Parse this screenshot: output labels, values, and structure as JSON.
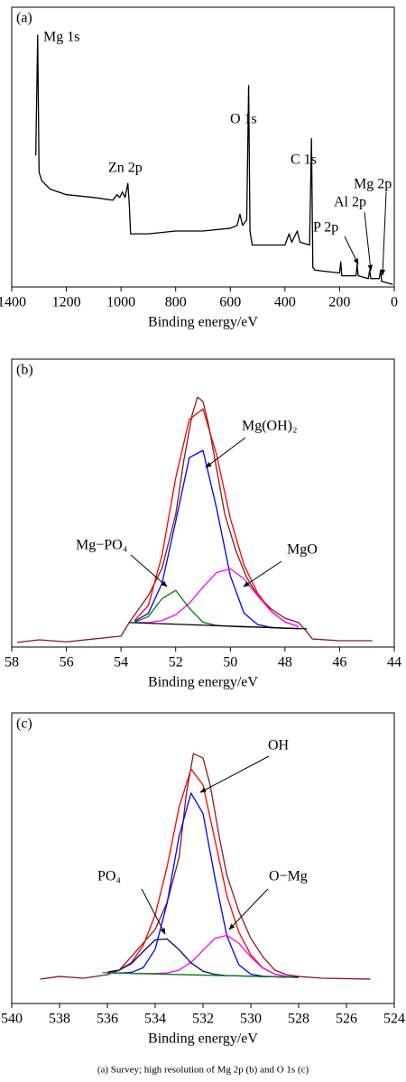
{
  "chart_data": [
    {
      "type": "line",
      "label": "(a)",
      "color": "#000000",
      "x": [
        1312,
        1305,
        1300,
        1290,
        1260,
        1230,
        1200,
        1100,
        1030,
        1015,
        1005,
        995,
        985,
        975,
        970,
        965,
        900,
        800,
        700,
        600,
        575,
        565,
        555,
        540,
        533,
        528,
        520,
        450,
        400,
        385,
        375,
        355,
        345,
        310,
        303,
        298,
        290,
        200,
        196,
        192,
        140,
        136,
        132,
        95,
        90,
        86,
        55,
        50,
        46,
        10,
        5
      ],
      "values": [
        47,
        90,
        41,
        38,
        35,
        34,
        33,
        32,
        31,
        33,
        32,
        34,
        32,
        37,
        30,
        19,
        19,
        20,
        20,
        21,
        22,
        26,
        22,
        24,
        72,
        20,
        15,
        15,
        15,
        19,
        16,
        20,
        16,
        15,
        53,
        7,
        6,
        5,
        9,
        4,
        4,
        8,
        4,
        3,
        6,
        3,
        3,
        6,
        2,
        1,
        1
      ],
      "xlim": [
        1400,
        0
      ],
      "xticks": [
        1400,
        1200,
        1000,
        800,
        600,
        400,
        200,
        0
      ],
      "ylim": [
        0,
        100
      ],
      "x_label": "Binding energy/eV",
      "annotations": [
        "Mg 1s",
        "Zn 2p",
        "O 1s",
        "C 1s",
        "P 2p",
        "Al 2p",
        "Mg 2p"
      ]
    },
    {
      "type": "line",
      "label": "(b)",
      "xlim": [
        58,
        44
      ],
      "xticks": [
        58,
        56,
        54,
        52,
        50,
        48,
        46,
        44
      ],
      "ylim": [
        0,
        100
      ],
      "x_label": "Binding energy/eV",
      "series": [
        {
          "color": "#8b1a1a",
          "x": [
            57.8,
            57,
            56,
            55,
            54,
            53.7,
            53,
            52.5,
            52,
            51.7,
            51.4,
            51.2,
            51,
            50.8,
            50.5,
            50.2,
            49.8,
            49.4,
            49,
            48.5,
            48,
            47.5,
            47.2,
            47,
            46,
            44.8
          ],
          "values": [
            1.6,
            2.5,
            1.8,
            2.8,
            3.8,
            8.5,
            17.9,
            27.3,
            46,
            64.9,
            80.6,
            86.8,
            85.3,
            77.4,
            61.8,
            46,
            33.5,
            24.1,
            17.9,
            13.2,
            10,
            8.5,
            5.3,
            2.8,
            2.2,
            2.2
          ]
        },
        {
          "color": "#ff0000",
          "x": [
            53.5,
            53,
            52.5,
            52,
            51.5,
            51,
            50.5,
            50,
            49.5,
            49,
            48.5,
            48,
            47.5
          ],
          "values": [
            9.3,
            14.4,
            31.9,
            58.7,
            79.1,
            82.7,
            66.7,
            44.7,
            28.5,
            18.7,
            12.4,
            8.7,
            7.1
          ]
        },
        {
          "name": "Mg(OH)₂",
          "color": "#0000ff",
          "x": [
            53.5,
            53,
            52.5,
            52,
            51.5,
            51,
            50.5,
            50,
            49.5,
            49,
            48.5,
            48,
            47.5
          ],
          "values": [
            9.0,
            11.7,
            22.1,
            43.6,
            65.8,
            68.3,
            48.1,
            24.7,
            11.8,
            7.8,
            6.8,
            6.5,
            6.4
          ]
        },
        {
          "name": "MgO",
          "color": "#ff00ff",
          "x": [
            53.5,
            53,
            52.5,
            52,
            51.5,
            51,
            50.5,
            50,
            49.5,
            49,
            48.5,
            48,
            47.5
          ],
          "values": [
            8.5,
            8.5,
            9.2,
            11.2,
            15.2,
            20.8,
            25.9,
            27.2,
            23.7,
            17.8,
            12.3,
            8.7,
            7.1
          ]
        },
        {
          "name": "Mg−PO₄",
          "color": "#008000",
          "x": [
            53.5,
            53,
            52.5,
            52,
            51.5,
            51,
            50.5,
            50,
            49.5,
            49,
            48.5,
            48,
            47.5
          ],
          "values": [
            8.6,
            10.6,
            16.8,
            19.7,
            13.5,
            8.6,
            7.5,
            7.2,
            7.0,
            6.9,
            6.7,
            6.5,
            6.4
          ]
        },
        {
          "color": "#000000",
          "x": [
            53.7,
            47.2
          ],
          "values": [
            8.5,
            6.3
          ]
        }
      ]
    },
    {
      "type": "line",
      "label": "(c)",
      "xlim": [
        540,
        524
      ],
      "xticks": [
        540,
        538,
        536,
        534,
        532,
        530,
        528,
        526,
        524
      ],
      "ylim": [
        0,
        100
      ],
      "x_label": "Binding energy/eV",
      "series": [
        {
          "color": "#8b1a1a",
          "x": [
            538.8,
            538,
            537,
            536,
            535.5,
            535,
            534.5,
            534,
            533.5,
            533,
            532.7,
            532.4,
            532,
            531.7,
            531.3,
            531,
            530.5,
            530,
            529.5,
            529,
            528.5,
            528,
            527,
            525
          ],
          "values": [
            8.4,
            9.3,
            8.7,
            9.9,
            11.5,
            16.1,
            20.8,
            25.5,
            34.8,
            50.3,
            72,
            86,
            84.5,
            75.2,
            56.5,
            44.1,
            31.7,
            22.4,
            16.1,
            11.5,
            9.9,
            9.3,
            8.7,
            8.4
          ]
        },
        {
          "color": "#ff0000",
          "x": [
            536,
            535.5,
            535,
            534.5,
            534,
            533.5,
            533,
            532.5,
            532,
            531.5,
            531,
            530.5,
            530,
            529.5,
            529,
            528.5,
            528
          ],
          "values": [
            10.8,
            11.5,
            14.0,
            19.9,
            30.5,
            47.1,
            67.6,
            80.7,
            75.2,
            56.2,
            37.1,
            24.5,
            16.7,
            12.3,
            10.1,
            9.3,
            9.0
          ]
        },
        {
          "name": "OH",
          "color": "#0000ff",
          "x": [
            536,
            535.5,
            535,
            534.5,
            534,
            533.5,
            533,
            532.5,
            532,
            531.5,
            531,
            530.5,
            530,
            529.5,
            529,
            528.5,
            528
          ],
          "values": [
            10.6,
            10.5,
            10.7,
            12.3,
            18.7,
            34.6,
            57.6,
            72.4,
            65.4,
            43.2,
            23.2,
            13.3,
            10.1,
            9.4,
            9.2,
            9.1,
            9.0
          ]
        },
        {
          "name": "O−Mg",
          "color": "#ff00ff",
          "x": [
            536,
            535.5,
            535,
            534.5,
            534,
            533.5,
            533,
            532.5,
            532,
            531.5,
            531,
            530.5,
            530,
            529.5,
            529,
            528.5,
            528
          ],
          "values": [
            10.6,
            10.5,
            10.4,
            10.3,
            10.3,
            10.5,
            11.5,
            14.1,
            18.3,
            22.4,
            23.5,
            20.7,
            16.0,
            12.2,
            10.1,
            9.3,
            9.0
          ]
        },
        {
          "name": "PO₄",
          "color": "#000080",
          "x": [
            536,
            535.5,
            535,
            534.5,
            534,
            533.5,
            533,
            532.5,
            532,
            531.5,
            531,
            530.5,
            530,
            529.5,
            529,
            528.5,
            528
          ],
          "values": [
            10.8,
            11.5,
            13.7,
            17.9,
            21.9,
            22.2,
            18.5,
            14.0,
            11.1,
            10.0,
            9.6,
            9.5,
            9.4,
            9.3,
            9.2,
            9.1,
            9.0
          ]
        },
        {
          "color": "#008000",
          "x": [
            536.2,
            528.2
          ],
          "values": [
            10.6,
            9.0
          ]
        }
      ]
    }
  ],
  "caption": "(a) Survey; high  resolution of Mg 2p (b) and O 1s (c)"
}
